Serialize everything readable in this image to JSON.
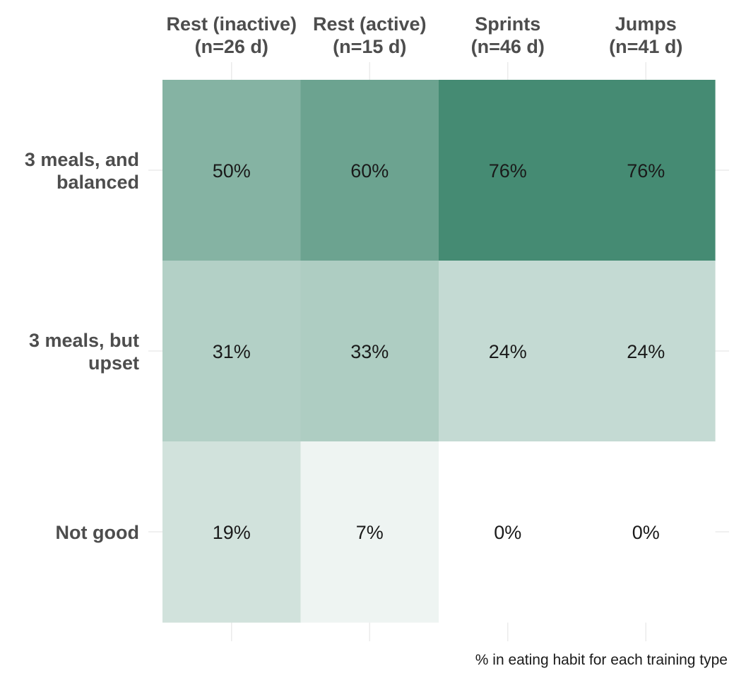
{
  "chart_data": {
    "type": "heatmap",
    "columns": [
      [
        "Rest (inactive)",
        "(n=26 d)"
      ],
      [
        "Rest (active)",
        "(n=15 d)"
      ],
      [
        "Sprints",
        "(n=46 d)"
      ],
      [
        "Jumps",
        "(n=41 d)"
      ]
    ],
    "rows": [
      [
        "3 meals, and",
        "balanced"
      ],
      [
        "3 meals, but",
        "upset"
      ],
      [
        "Not good"
      ]
    ],
    "values": [
      [
        50,
        60,
        76,
        76
      ],
      [
        31,
        33,
        24,
        24
      ],
      [
        19,
        7,
        0,
        0
      ]
    ],
    "labels": [
      [
        "50%",
        "60%",
        "76%",
        "76%"
      ],
      [
        "31%",
        "33%",
        "24%",
        "24%"
      ],
      [
        "19%",
        "7%",
        "0%",
        "0%"
      ]
    ],
    "caption": "% in eating habit for each training type",
    "scale": {
      "min": 0,
      "max": 76,
      "low_color": "#ffffff",
      "high_color": "#458b73"
    },
    "grid": true,
    "legend": "none"
  }
}
